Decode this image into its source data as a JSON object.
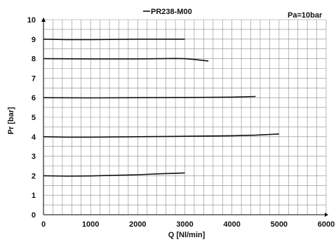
{
  "chart_data": {
    "type": "line",
    "title": "PR238-M00",
    "annotation": "Pa=10bar",
    "xlabel": "Q [Nl/min]",
    "ylabel": "Pr [bar]",
    "xlim": [
      0,
      6000
    ],
    "ylim": [
      0,
      10
    ],
    "x_ticks": [
      0,
      1000,
      2000,
      3000,
      4000,
      5000,
      6000
    ],
    "y_ticks": [
      0,
      1,
      2,
      3,
      4,
      5,
      6,
      7,
      8,
      9,
      10
    ],
    "x_minor_step": 200,
    "y_minor_step": 0.5,
    "grid": true,
    "series": [
      {
        "points": [
          [
            0,
            9.0
          ],
          [
            500,
            8.98
          ],
          [
            1000,
            8.98
          ],
          [
            2000,
            9.0
          ],
          [
            3000,
            9.0
          ]
        ]
      },
      {
        "points": [
          [
            0,
            8.0
          ],
          [
            1000,
            7.99
          ],
          [
            2000,
            7.99
          ],
          [
            2800,
            8.01
          ],
          [
            3000,
            8.0
          ],
          [
            3200,
            7.96
          ],
          [
            3500,
            7.88
          ]
        ]
      },
      {
        "points": [
          [
            0,
            6.0
          ],
          [
            1000,
            5.99
          ],
          [
            2000,
            6.0
          ],
          [
            3000,
            6.01
          ],
          [
            4000,
            6.03
          ],
          [
            4500,
            6.06
          ]
        ]
      },
      {
        "points": [
          [
            0,
            4.0
          ],
          [
            500,
            3.98
          ],
          [
            1000,
            3.98
          ],
          [
            2000,
            4.0
          ],
          [
            3000,
            4.02
          ],
          [
            4000,
            4.05
          ],
          [
            4500,
            4.08
          ],
          [
            5000,
            4.14
          ]
        ]
      },
      {
        "points": [
          [
            0,
            2.0
          ],
          [
            500,
            1.98
          ],
          [
            1000,
            1.99
          ],
          [
            2000,
            2.05
          ],
          [
            2500,
            2.1
          ],
          [
            3000,
            2.14
          ]
        ]
      }
    ]
  }
}
